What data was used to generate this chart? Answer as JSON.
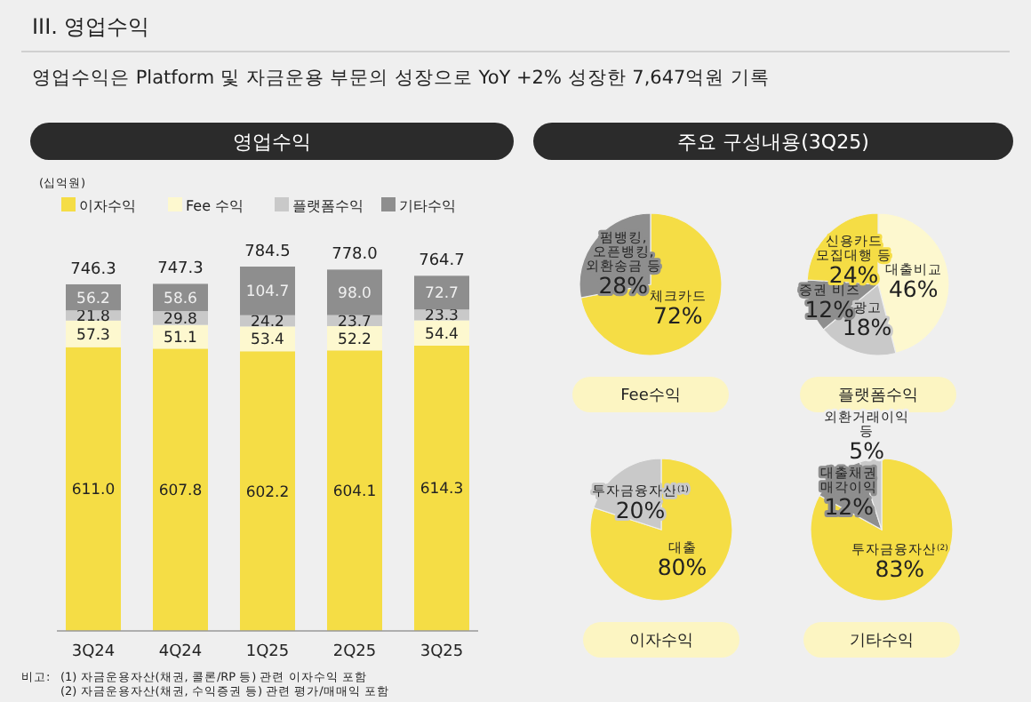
{
  "chart_data": [
    {
      "type": "bar",
      "title": "영업수익",
      "ylabel": "(십억원)",
      "stacked": true,
      "legend": "top",
      "categories": [
        "3Q24",
        "4Q24",
        "1Q25",
        "2Q25",
        "3Q25"
      ],
      "series": [
        {
          "name": "이자수익",
          "color": "#f5dd45",
          "values": [
            611.0,
            607.8,
            602.2,
            604.1,
            614.3
          ],
          "value_labels": [
            "611.0",
            "607.8",
            "602.2",
            "604.1",
            "614.3"
          ]
        },
        {
          "name": "Fee 수익",
          "color": "#fdf8cf",
          "values": [
            57.3,
            51.1,
            53.4,
            52.2,
            54.4
          ],
          "value_labels": [
            "57.3",
            "51.1",
            "53.4",
            "52.2",
            "54.4"
          ]
        },
        {
          "name": "플랫폼수익",
          "color": "#c9c9c9",
          "values": [
            21.8,
            29.8,
            24.2,
            23.7,
            23.3
          ],
          "value_labels": [
            "21.8",
            "29.8",
            "24.2",
            "23.7",
            "23.3"
          ]
        },
        {
          "name": "기타수익",
          "color": "#8e8e8e",
          "values": [
            56.2,
            58.6,
            104.7,
            98.0,
            72.7
          ],
          "value_labels": [
            "56.2",
            "58.6",
            "104.7",
            "98.0",
            "72.7"
          ]
        }
      ],
      "totals": [
        "746.3",
        "747.3",
        "784.5",
        "778.0",
        "764.7"
      ],
      "annotations": [
        "III. 영업수익",
        "영업수익은 Platform 및 자금운용 부문의 성장으로 YoY +2% 성장한 7,647억원 기록",
        "비고:",
        "(1) 자금운용자산(채권, 콜론/RP 등) 관련 이자수익 포함",
        "(2) 자금운용자산(채권, 수익증권 등) 관련 평가/매매익 포함"
      ]
    },
    {
      "type": "pie",
      "title": "Fee수익",
      "subtitle": "주요 구성내용(3Q25)",
      "categories": [
        "체크카드",
        "펌뱅킹, 오픈뱅킹, 외환송금 등"
      ],
      "values": [
        72,
        28
      ],
      "colors": [
        "#f5dd45",
        "#8e8e8e"
      ],
      "value_labels": [
        "72%",
        "28%"
      ]
    },
    {
      "type": "pie",
      "title": "플랫폼수익",
      "categories": [
        "대출비교",
        "광고",
        "증권 비즈",
        "신용카드 모집대행 등"
      ],
      "values": [
        46,
        18,
        12,
        24
      ],
      "colors": [
        "#fdf8cf",
        "#c9c9c9",
        "#8e8e8e",
        "#f5dd45"
      ],
      "value_labels": [
        "46%",
        "18%",
        "12%",
        "24%"
      ]
    },
    {
      "type": "pie",
      "title": "이자수익",
      "categories": [
        "대출",
        "투자금융자산$^{(1)}$"
      ],
      "values": [
        80,
        20
      ],
      "colors": [
        "#f5dd45",
        "#c9c9c9"
      ],
      "value_labels": [
        "80%",
        "20%"
      ]
    },
    {
      "type": "pie",
      "title": "기타수익",
      "categories": [
        "투자금융자산$^{(2)}$",
        "대출채권 매각이익",
        "외환거래이익 등"
      ],
      "values": [
        83,
        12,
        5
      ],
      "colors": [
        "#f5dd45",
        "#8e8e8e",
        "#c9c9c9"
      ],
      "value_labels": [
        "83%",
        "12%",
        "5%"
      ]
    }
  ]
}
